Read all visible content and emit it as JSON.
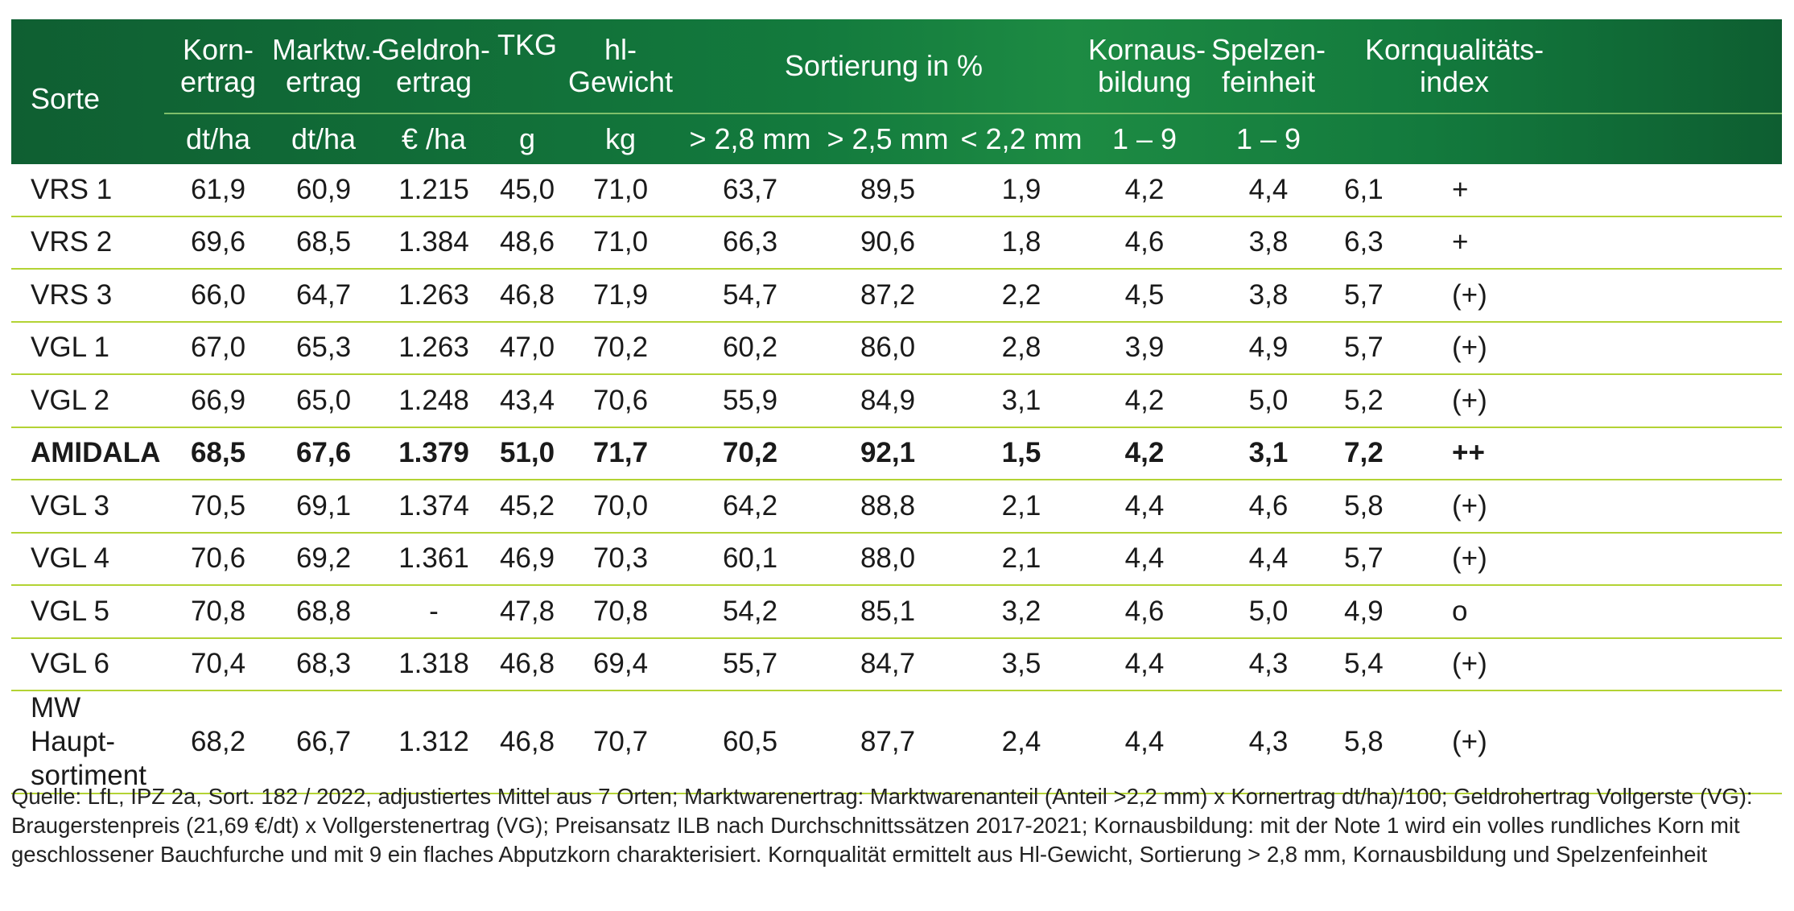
{
  "table": {
    "header": {
      "sorte": "Sorte",
      "kornertrag_1": "Korn-",
      "kornertrag_2": "ertrag",
      "marktwertrag_1": "Marktw.-",
      "marktwertrag_2": "ertrag",
      "geldrohertrag_1": "Geldroh-",
      "geldrohertrag_2": "ertrag",
      "tkg": "TKG",
      "hlgewicht_1": "hl-",
      "hlgewicht_2": "Gewicht",
      "sortierung": "Sortierung in %",
      "kornausbildung_1": "Kornaus-",
      "kornausbildung_2": "bildung",
      "spelzenfeinheit_1": "Spelzen-",
      "spelzenfeinheit_2": "feinheit",
      "kornqualitaet_1": "Kornqualitäts-",
      "kornqualitaet_2": "index"
    },
    "units": {
      "kornertrag": "dt/ha",
      "marktwertrag": "dt/ha",
      "geldrohertrag": "€ /ha",
      "tkg": "g",
      "hlgewicht": "kg",
      "s28": "> 2,8 mm",
      "s25": "> 2,5 mm",
      "s22": "< 2,2 mm",
      "kornausbildung": "1 – 9",
      "spelzenfeinheit": "1 – 9"
    },
    "rows": [
      {
        "name": "VRS 1",
        "v": [
          "61,9",
          "60,9",
          "1.215",
          "45,0",
          "71,0",
          "63,7",
          "89,5",
          "1,9",
          "4,2",
          "4,4",
          "6,1",
          "+"
        ]
      },
      {
        "name": "VRS 2",
        "v": [
          "69,6",
          "68,5",
          "1.384",
          "48,6",
          "71,0",
          "66,3",
          "90,6",
          "1,8",
          "4,6",
          "3,8",
          "6,3",
          "+"
        ]
      },
      {
        "name": "VRS 3",
        "v": [
          "66,0",
          "64,7",
          "1.263",
          "46,8",
          "71,9",
          "54,7",
          "87,2",
          "2,2",
          "4,5",
          "3,8",
          "5,7",
          "(+)"
        ]
      },
      {
        "name": "VGL 1",
        "v": [
          "67,0",
          "65,3",
          "1.263",
          "47,0",
          "70,2",
          "60,2",
          "86,0",
          "2,8",
          "3,9",
          "4,9",
          "5,7",
          "(+)"
        ]
      },
      {
        "name": "VGL 2",
        "v": [
          "66,9",
          "65,0",
          "1.248",
          "43,4",
          "70,6",
          "55,9",
          "84,9",
          "3,1",
          "4,2",
          "5,0",
          "5,2",
          "(+)"
        ]
      },
      {
        "name": "AMIDALA",
        "v": [
          "68,5",
          "67,6",
          "1.379",
          "51,0",
          "71,7",
          "70,2",
          "92,1",
          "1,5",
          "4,2",
          "3,1",
          "7,2",
          "++"
        ]
      },
      {
        "name": "VGL 3",
        "v": [
          "70,5",
          "69,1",
          "1.374",
          "45,2",
          "70,0",
          "64,2",
          "88,8",
          "2,1",
          "4,4",
          "4,6",
          "5,8",
          "(+)"
        ]
      },
      {
        "name": "VGL 4",
        "v": [
          "70,6",
          "69,2",
          "1.361",
          "46,9",
          "70,3",
          "60,1",
          "88,0",
          "2,1",
          "4,4",
          "4,4",
          "5,7",
          "(+)"
        ]
      },
      {
        "name": "VGL 5",
        "v": [
          "70,8",
          "68,8",
          "-",
          "47,8",
          "70,8",
          "54,2",
          "85,1",
          "3,2",
          "4,6",
          "5,0",
          "4,9",
          "o"
        ]
      },
      {
        "name": "VGL 6",
        "v": [
          "70,4",
          "68,3",
          "1.318",
          "46,8",
          "69,4",
          "55,7",
          "84,7",
          "3,5",
          "4,4",
          "4,3",
          "5,4",
          "(+)"
        ]
      },
      {
        "name": "MW Haupt-sortiment",
        "v": [
          "68,2",
          "66,7",
          "1.312",
          "46,8",
          "70,7",
          "60,5",
          "87,7",
          "2,4",
          "4,4",
          "4,3",
          "5,8",
          "(+)"
        ]
      }
    ]
  },
  "footnote": "Quelle: LfL, IPZ 2a, Sort. 182 / 2022,  adjustiertes Mittel aus 7 Orten; Marktwarenertrag: Marktwarenanteil (Anteil >2,2 mm) x Kornertrag dt/ha)/100; Geldrohertrag Vollgerste (VG): Braugerstenpreis (21,69 €/dt) x Vollgerstenertrag (VG); Preisansatz ILB nach Durchschnittssätzen 2017-2021; Kornausbildung: mit der Note 1 wird ein volles rundliches Korn mit geschlossener Bauchfurche und mit 9 ein flaches Abputzkorn charakterisiert. Kornqualität ermittelt aus Hl-Gewicht, Sortierung > 2,8 mm, Kornausbildung und Spelzenfeinheit",
  "colors": {
    "header_green": "#137a3d",
    "row_separator": "#b3d334"
  }
}
